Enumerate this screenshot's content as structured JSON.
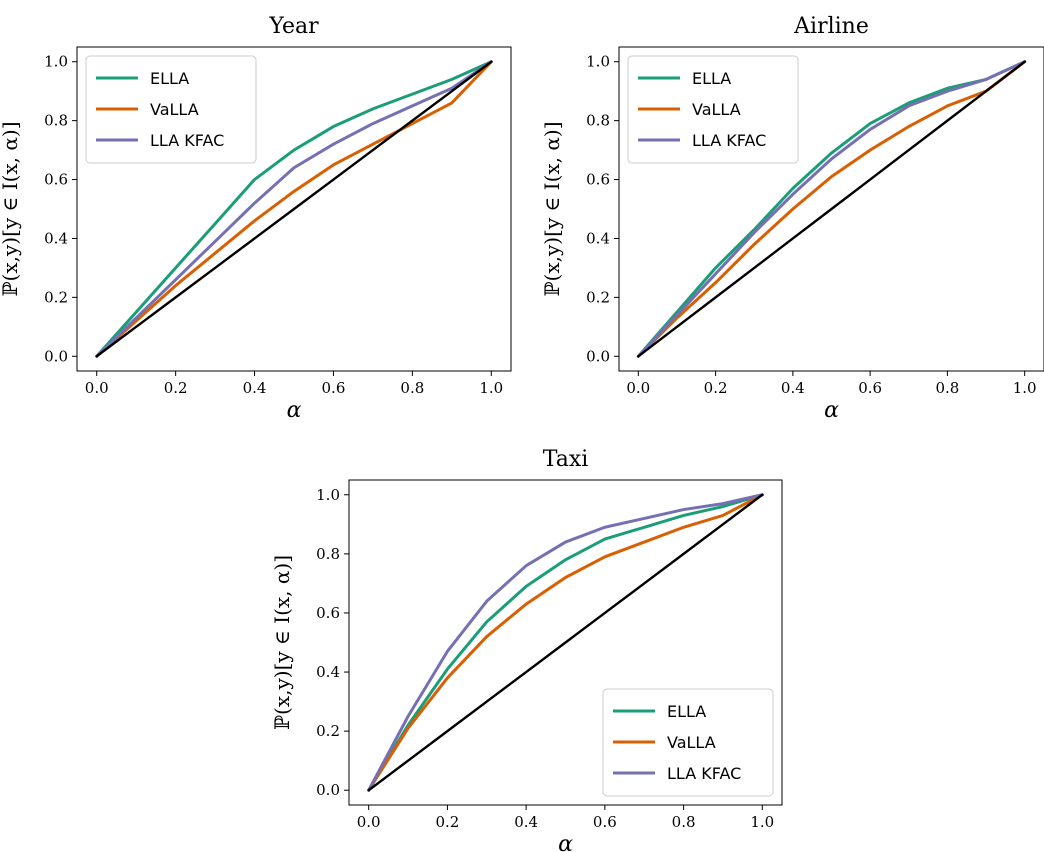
{
  "figure": {
    "legend_labels": [
      "ELLA",
      "VaLLA",
      "LLA KFAC"
    ],
    "colors": {
      "ELLA": "#1b9e77",
      "VaLLA": "#d95f02",
      "LLA KFAC": "#7570b3",
      "diagonal": "#000000"
    }
  },
  "chart_data": [
    {
      "type": "line",
      "title": "Year",
      "xlabel": "α",
      "ylabel": "ℙ(x,y)[y ∈ I(x, α)]",
      "xlim": [
        0,
        1
      ],
      "ylim": [
        0,
        1
      ],
      "xticks": [
        "0.0",
        "0.2",
        "0.4",
        "0.6",
        "0.8",
        "1.0"
      ],
      "yticks": [
        "0.0",
        "0.2",
        "0.4",
        "0.6",
        "0.8",
        "1.0"
      ],
      "legend_position": "upper-left",
      "x": [
        0,
        0.1,
        0.2,
        0.3,
        0.4,
        0.5,
        0.6,
        0.7,
        0.8,
        0.9,
        1.0
      ],
      "series": [
        {
          "name": "ELLA",
          "values": [
            0,
            0.15,
            0.3,
            0.45,
            0.6,
            0.7,
            0.78,
            0.84,
            0.89,
            0.94,
            1.0
          ]
        },
        {
          "name": "VaLLA",
          "values": [
            0,
            0.12,
            0.24,
            0.35,
            0.46,
            0.56,
            0.65,
            0.72,
            0.79,
            0.86,
            1.0
          ]
        },
        {
          "name": "LLA KFAC",
          "values": [
            0,
            0.13,
            0.26,
            0.39,
            0.52,
            0.64,
            0.72,
            0.79,
            0.85,
            0.91,
            1.0
          ]
        },
        {
          "name": "",
          "values": [
            0,
            0.1,
            0.2,
            0.3,
            0.4,
            0.5,
            0.6,
            0.7,
            0.8,
            0.9,
            1.0
          ]
        }
      ]
    },
    {
      "type": "line",
      "title": "Airline",
      "xlabel": "α",
      "ylabel": "ℙ(x,y)[y ∈ I(x, α)]",
      "xlim": [
        0,
        1
      ],
      "ylim": [
        0,
        1
      ],
      "xticks": [
        "0.0",
        "0.2",
        "0.4",
        "0.6",
        "0.8",
        "1.0"
      ],
      "yticks": [
        "0.0",
        "0.2",
        "0.4",
        "0.6",
        "0.8",
        "1.0"
      ],
      "legend_position": "upper-left",
      "x": [
        0,
        0.1,
        0.2,
        0.3,
        0.4,
        0.5,
        0.6,
        0.7,
        0.8,
        0.9,
        1.0
      ],
      "series": [
        {
          "name": "ELLA",
          "values": [
            0,
            0.15,
            0.3,
            0.43,
            0.57,
            0.69,
            0.79,
            0.86,
            0.91,
            0.94,
            1.0
          ]
        },
        {
          "name": "VaLLA",
          "values": [
            0,
            0.13,
            0.25,
            0.38,
            0.5,
            0.61,
            0.7,
            0.78,
            0.85,
            0.9,
            1.0
          ]
        },
        {
          "name": "LLA KFAC",
          "values": [
            0,
            0.14,
            0.28,
            0.42,
            0.55,
            0.67,
            0.77,
            0.85,
            0.9,
            0.94,
            1.0
          ]
        },
        {
          "name": "",
          "values": [
            0,
            0.1,
            0.2,
            0.3,
            0.4,
            0.5,
            0.6,
            0.7,
            0.8,
            0.9,
            1.0
          ]
        }
      ]
    },
    {
      "type": "line",
      "title": "Taxi",
      "xlabel": "α",
      "ylabel": "ℙ(x,y)[y ∈ I(x, α)]",
      "xlim": [
        0,
        1
      ],
      "ylim": [
        0,
        1
      ],
      "xticks": [
        "0.0",
        "0.2",
        "0.4",
        "0.6",
        "0.8",
        "1.0"
      ],
      "yticks": [
        "0.0",
        "0.2",
        "0.4",
        "0.6",
        "0.8",
        "1.0"
      ],
      "legend_position": "lower-right",
      "x": [
        0,
        0.1,
        0.2,
        0.3,
        0.4,
        0.5,
        0.6,
        0.7,
        0.8,
        0.9,
        1.0
      ],
      "series": [
        {
          "name": "ELLA",
          "values": [
            0,
            0.22,
            0.41,
            0.57,
            0.69,
            0.78,
            0.85,
            0.89,
            0.93,
            0.96,
            1.0
          ]
        },
        {
          "name": "VaLLA",
          "values": [
            0,
            0.21,
            0.38,
            0.52,
            0.63,
            0.72,
            0.79,
            0.84,
            0.89,
            0.93,
            1.0
          ]
        },
        {
          "name": "LLA KFAC",
          "values": [
            0,
            0.25,
            0.47,
            0.64,
            0.76,
            0.84,
            0.89,
            0.92,
            0.95,
            0.97,
            1.0
          ]
        },
        {
          "name": "",
          "values": [
            0,
            0.1,
            0.2,
            0.3,
            0.4,
            0.5,
            0.6,
            0.7,
            0.8,
            0.9,
            1.0
          ]
        }
      ]
    }
  ]
}
